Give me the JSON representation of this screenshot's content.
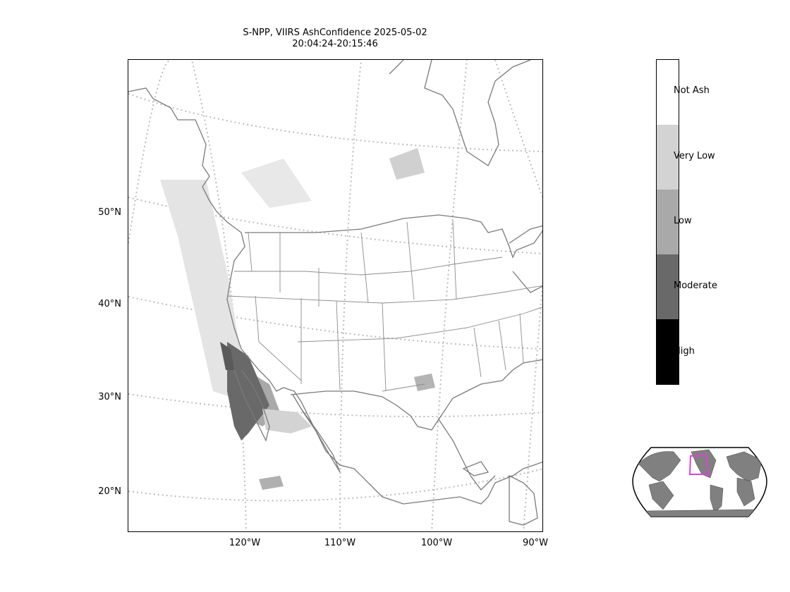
{
  "title": {
    "line1": "S-NPP, VIIRS AshConfidence 2025-05-02",
    "line2": "20:04:24-20:15:46"
  },
  "lat_labels": [
    "50°N",
    "40°N",
    "30°N",
    "20°N"
  ],
  "lon_labels": [
    "120°W",
    "110°W",
    "100°W",
    "90°W"
  ],
  "colorbar": {
    "categories": [
      {
        "label": "Not Ash",
        "color": "#ffffff"
      },
      {
        "label": "Very Low",
        "color": "#d3d3d3"
      },
      {
        "label": "Low",
        "color": "#a9a9a9"
      },
      {
        "label": "Moderate",
        "color": "#696969"
      },
      {
        "label": "High",
        "color": "#000000"
      }
    ]
  },
  "colors": {
    "coastline": "#7a7a7a",
    "gridline": "#bdbdbd",
    "inset_land": "#808080",
    "inset_box": "#e040e0"
  }
}
